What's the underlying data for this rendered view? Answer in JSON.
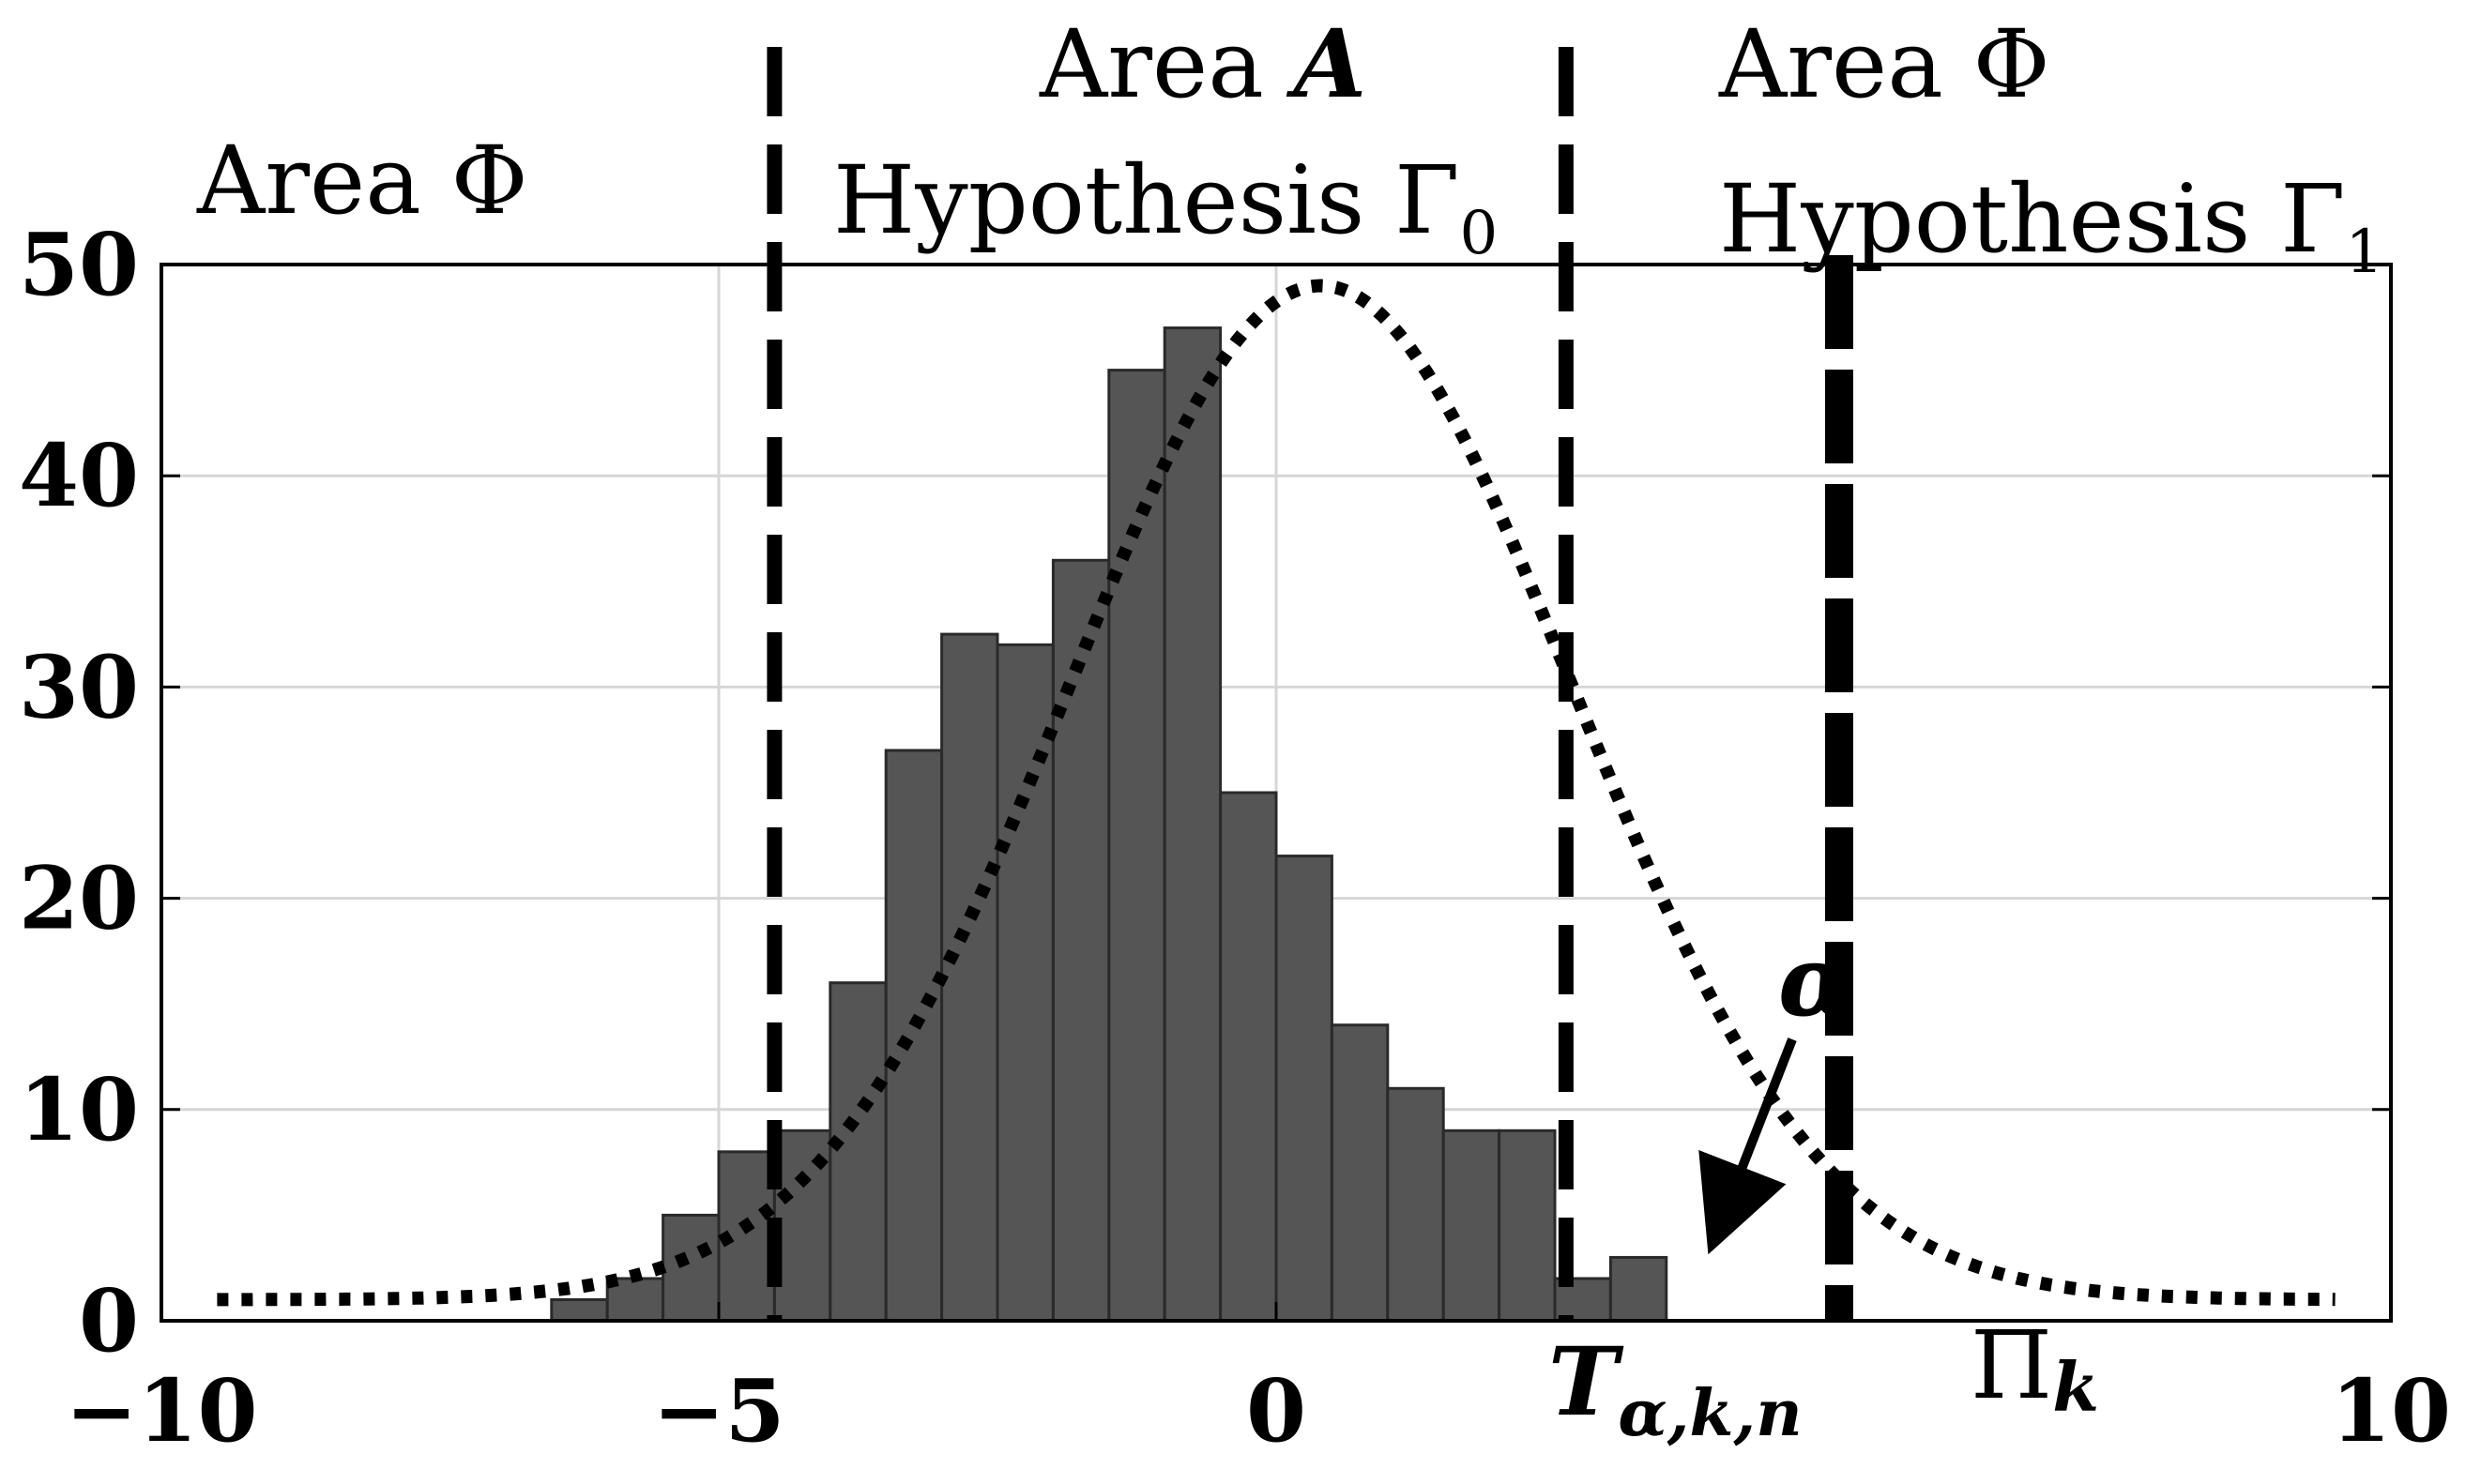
{
  "chart_data": {
    "type": "bar",
    "xlim": [
      -10,
      10
    ],
    "ylim": [
      0,
      50
    ],
    "x_ticks": [
      -10,
      -5,
      0,
      10
    ],
    "x_tick_labels": [
      "−10",
      "−5",
      "0",
      "10"
    ],
    "y_ticks": [
      0,
      10,
      20,
      30,
      40,
      50
    ],
    "y_tick_labels": [
      "0",
      "10",
      "20",
      "30",
      "40",
      "50"
    ],
    "grid": true,
    "bins": {
      "start": -6.5,
      "width": 0.5,
      "counts": [
        1,
        2,
        5,
        8,
        9,
        16,
        27,
        32.5,
        32,
        36,
        45,
        47,
        25,
        22,
        14,
        11,
        9,
        9,
        2,
        3
      ]
    },
    "bar_color": "#555555",
    "fitted_curve": {
      "style": "dotted",
      "mean": 0.4,
      "peak": 49,
      "sigma": 2.25,
      "floor": 1
    },
    "vlines": [
      {
        "id": "left-threshold",
        "x": -4.5,
        "style": "dashed"
      },
      {
        "id": "t-alpha-threshold",
        "x": 2.6,
        "style": "dashed"
      },
      {
        "id": "pi-k-threshold",
        "x": 5.05,
        "style": "dashed-bold"
      }
    ],
    "annotations": {
      "area_phi_left": "Area Φ",
      "area_a_prefix": "Area ",
      "area_a_symbol": "A",
      "hypothesis_0_text": "Hypothesis Γ",
      "hypothesis_0_sub": "0",
      "area_phi_right": "Area Φ",
      "hypothesis_1_text": "Hypothesis Γ",
      "hypothesis_1_sub": "1",
      "alpha": "α",
      "t_main": "T",
      "t_sub": "α,k,n",
      "pi_main": "Π",
      "pi_sub": "k"
    }
  }
}
